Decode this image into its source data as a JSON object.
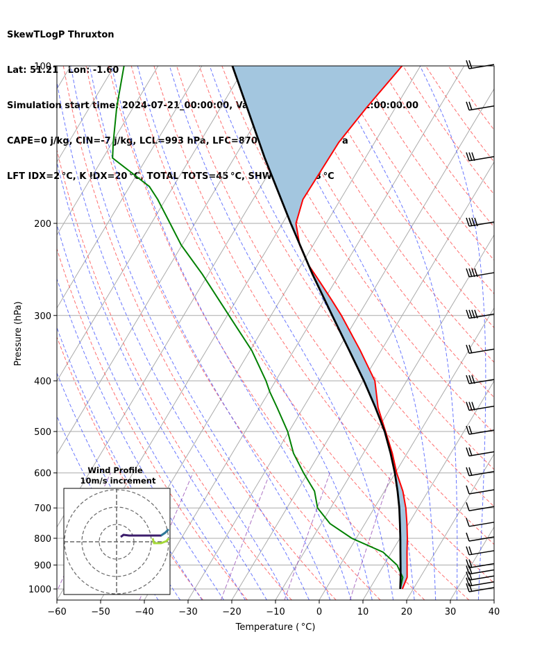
{
  "title": {
    "line1": "SkewTLogP Thruxton",
    "line2": "Lat: 51.21   Lon: -1.60",
    "line3": "Simulation start time: 2024-07-21_00:00:00, Valid time: 2024-07-23T01:00:00.00",
    "line4": "CAPE=0 j/kg, CIN=-7 j/kg, LCL=993 hPa, LFC=870 hPa, EQ=895 hPa",
    "line5": "LFT IDX=2 °C, K IDX=20 °C, TOTAL TOTS=45 °C, SHWTR_IDX=3 °C"
  },
  "chart_data": {
    "type": "skewt-logp",
    "xlabel": "Temperature ( °C)",
    "ylabel": "Pressure (hPa)",
    "xlim": [
      -60,
      40
    ],
    "ylim": [
      1050,
      100
    ],
    "x_ticks": [
      "−60",
      "−50",
      "−40",
      "−30",
      "−20",
      "−10",
      "0",
      "10",
      "20",
      "30",
      "40"
    ],
    "x_tick_values": [
      -60,
      -50,
      -40,
      -30,
      -20,
      -10,
      0,
      10,
      20,
      30,
      40
    ],
    "y_ticks": [
      "100",
      "200",
      "300",
      "400",
      "500",
      "600",
      "700",
      "800",
      "900",
      "1000"
    ],
    "y_tick_values": [
      100,
      200,
      300,
      400,
      500,
      600,
      700,
      800,
      900,
      1000
    ],
    "grid": true,
    "colors": {
      "temperature": "#ff0000",
      "dewpoint": "#008000",
      "parcel": "#000000",
      "cape_fill": "#a3c6df",
      "dry_adiabats": "#ff5555",
      "moist_adiabats": "#4455ff",
      "mixing_ratio": "#8833aa",
      "isotherms": "#aaaaaa"
    },
    "temperature_profile": {
      "pressure": [
        1000,
        950,
        900,
        850,
        800,
        750,
        700,
        650,
        600,
        550,
        500,
        450,
        400,
        350,
        300,
        280,
        260,
        250,
        240,
        220,
        200,
        180,
        160,
        140,
        120,
        100
      ],
      "temperature": [
        17.5,
        17.0,
        15.3,
        13.5,
        11.7,
        9.6,
        7.2,
        4.2,
        0.3,
        -3.4,
        -7.9,
        -12.9,
        -17.3,
        -24.8,
        -33.9,
        -38.3,
        -43.1,
        -45.7,
        -48.4,
        -53.1,
        -56.9,
        -58.6,
        -58.4,
        -58.2,
        -56.6,
        -54.2
      ]
    },
    "dewpoint_profile": {
      "pressure": [
        1000,
        950,
        900,
        850,
        800,
        750,
        700,
        650,
        600,
        550,
        500,
        450,
        420,
        400,
        350,
        300,
        250,
        220,
        200,
        180,
        170,
        150,
        140,
        120,
        100
      ],
      "dewpoint": [
        17.0,
        16.0,
        13.0,
        8.0,
        -1.0,
        -8.0,
        -13.0,
        -16.0,
        -21.0,
        -26.0,
        -30.3,
        -36.0,
        -39.8,
        -42.2,
        -49.6,
        -59.6,
        -71.4,
        -80.2,
        -85.7,
        -91.8,
        -95.5,
        -107.8,
        -109.8,
        -113.8,
        -117.8
      ]
    },
    "parcel_profile": {
      "pressure": [
        1000,
        950,
        900,
        850,
        800,
        750,
        700,
        650,
        600,
        550,
        500,
        450,
        400,
        350,
        300,
        250,
        200,
        150,
        120,
        100
      ],
      "temperature": [
        17.0,
        15.5,
        13.8,
        12.0,
        10.1,
        8.0,
        5.7,
        3.0,
        -0.1,
        -3.8,
        -8.1,
        -13.5,
        -19.8,
        -27.3,
        -36.0,
        -46.2,
        -58.1,
        -73.0,
        -84.0,
        -93.0
      ]
    },
    "wind_barbs": {
      "pressure": [
        1000,
        975,
        950,
        925,
        900,
        850,
        800,
        750,
        700,
        650,
        600,
        550,
        500,
        450,
        400,
        350,
        300,
        250,
        200,
        150,
        120,
        100
      ],
      "barb_count": [
        2,
        2,
        2,
        2,
        2,
        2,
        1,
        1,
        1,
        1,
        2,
        2,
        2,
        3,
        3,
        2,
        4,
        4,
        4,
        3,
        2,
        2
      ]
    },
    "inset": {
      "title_line1": "Wind Profile",
      "title_line2": "10m/s increment"
    }
  }
}
